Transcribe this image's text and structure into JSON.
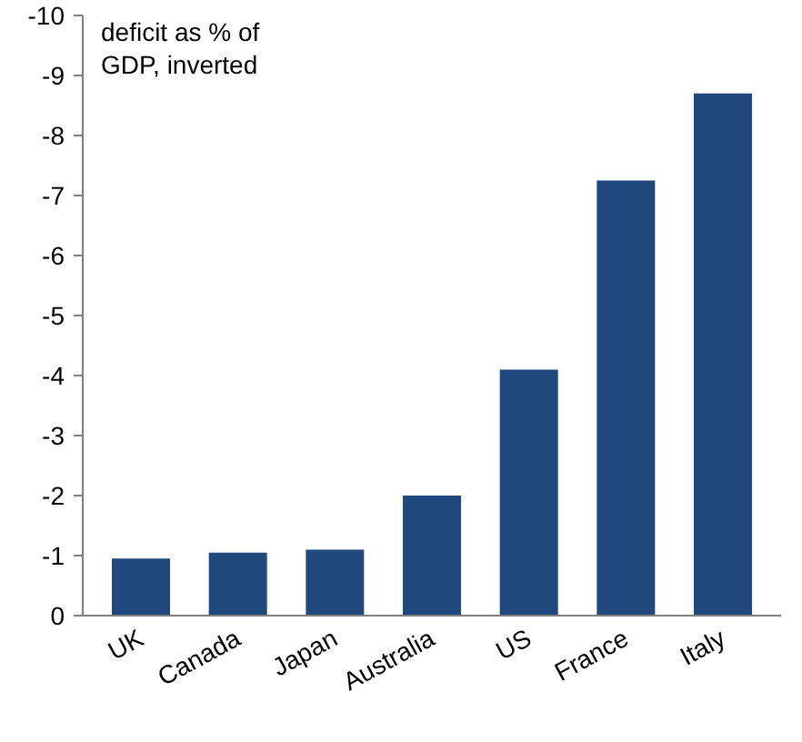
{
  "chart_data": {
    "type": "bar",
    "categories": [
      "UK",
      "Canada",
      "Japan",
      "Australia",
      "US",
      "France",
      "Italy"
    ],
    "values": [
      -0.95,
      -1.05,
      -1.1,
      -2.0,
      -4.1,
      -7.25,
      -8.7
    ],
    "color": "#1f497d",
    "ylim": [
      0,
      -10
    ],
    "yticks": [
      0,
      -1,
      -2,
      -3,
      -4,
      -5,
      -6,
      -7,
      -8,
      -9,
      -10
    ],
    "annotations": [
      "deficit as % of GDP, inverted"
    ],
    "grid": false
  }
}
